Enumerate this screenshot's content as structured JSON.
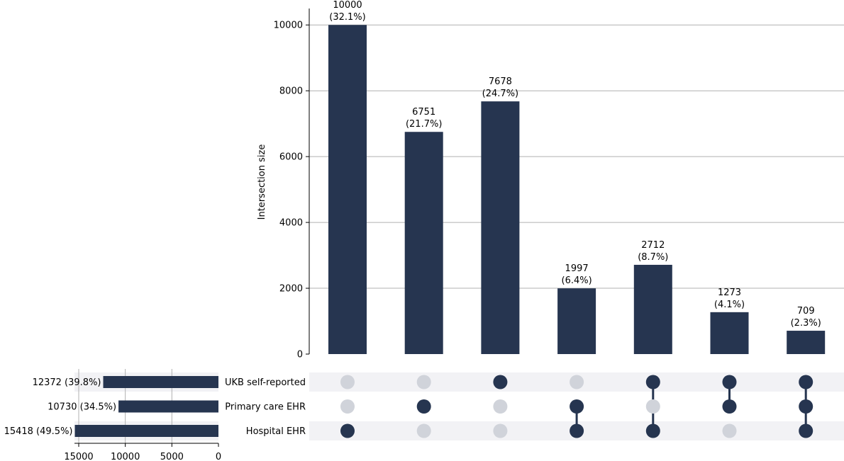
{
  "chart_data": {
    "type": "upset",
    "ylabel": "Intersection size",
    "ylim": [
      0,
      10500
    ],
    "yticks": [
      0,
      2000,
      4000,
      6000,
      8000,
      10000
    ],
    "grid": true,
    "bar_color": "#263550",
    "inactive_dot_color": "#d0d3da",
    "stripe_color": "#f2f2f5",
    "sets": [
      {
        "name": "UKB self-reported",
        "size": 12372,
        "label": "12372 (39.8%)"
      },
      {
        "name": "Primary care EHR",
        "size": 10730,
        "label": "10730 (34.5%)"
      },
      {
        "name": "Hospital EHR",
        "size": 15418,
        "label": "15418 (49.5%)"
      }
    ],
    "set_size_axis": {
      "ticks": [
        15000,
        10000,
        5000,
        0
      ],
      "max": 15500
    },
    "intersections": [
      {
        "value": 10000,
        "label": "10000",
        "pct": "(32.1%)",
        "members": [
          false,
          false,
          true
        ]
      },
      {
        "value": 6751,
        "label": "6751",
        "pct": "(21.7%)",
        "members": [
          false,
          true,
          false
        ]
      },
      {
        "value": 7678,
        "label": "7678",
        "pct": "(24.7%)",
        "members": [
          true,
          false,
          false
        ]
      },
      {
        "value": 1997,
        "label": "1997",
        "pct": "(6.4%)",
        "members": [
          false,
          true,
          true
        ]
      },
      {
        "value": 2712,
        "label": "2712",
        "pct": "(8.7%)",
        "members": [
          true,
          false,
          true
        ]
      },
      {
        "value": 1273,
        "label": "1273",
        "pct": "(4.1%)",
        "members": [
          true,
          true,
          false
        ]
      },
      {
        "value": 709,
        "label": "709",
        "pct": "(2.3%)",
        "members": [
          true,
          true,
          true
        ]
      }
    ]
  }
}
